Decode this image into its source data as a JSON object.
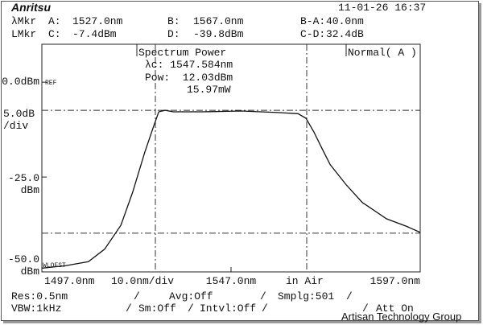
{
  "header": {
    "logo": "Anritsu",
    "datetime": "11-01-26 16:37",
    "markers": [
      [
        "λMkr",
        "A:",
        "1527.0nm",
        "B:",
        "1567.0nm",
        "B-A:",
        "40.0nm"
      ],
      [
        "LMkr",
        "C:",
        "-7.4dBm",
        "D:",
        "-39.8dBm",
        "C-D:",
        "32.4dB"
      ]
    ]
  },
  "chart_data": {
    "type": "line",
    "xlim": [
      1497,
      1597
    ],
    "ylim": [
      -50,
      10
    ],
    "xticks": [
      {
        "value": 1497,
        "label": "1497.0nm"
      },
      {
        "value": 1547,
        "label": "1547.0nm"
      },
      {
        "value": 1597,
        "label": "1597.0nm"
      }
    ],
    "yticks": [
      {
        "value": 0,
        "label": "0.0dBm"
      },
      {
        "value": -25,
        "label": "-25.0\n  dBm"
      },
      {
        "value": -50,
        "label": "-50.0\n  dBm"
      }
    ],
    "ref_label": "REF",
    "scale_label": "5.0dB\n/div",
    "span_label": "10.0nm/div",
    "medium_label": "in Air",
    "offset_label": "WLOFST",
    "mode_label": "Normal( A )",
    "analysis": [
      "Spectrum Power",
      "λc: 1547.584nm",
      "Pow:  12.03dBm",
      "15.97mW"
    ],
    "marker_lines": {
      "x": [
        1527,
        1567
      ],
      "y": [
        -7.4,
        -39.8
      ]
    },
    "color": "#111111",
    "x": [
      1497,
      1503,
      1509.3,
      1513.6,
      1517.9,
      1521,
      1524.2,
      1526.4,
      1527.9,
      1529.6,
      1531.7,
      1539.1,
      1549.8,
      1559.3,
      1564.7,
      1566.8,
      1568.9,
      1571,
      1573.2,
      1577.4,
      1581.7,
      1588.1,
      1593.4,
      1597
    ],
    "values": [
      -49,
      -48.4,
      -47.3,
      -44,
      -37.7,
      -29,
      -18.5,
      -12,
      -7.8,
      -7.4,
      -7.8,
      -7.8,
      -7.6,
      -8,
      -8.3,
      -9.5,
      -13.1,
      -17.4,
      -21.7,
      -27,
      -31.7,
      -36,
      -38,
      -39.6
    ]
  },
  "footer": [
    [
      "Res:0.5nm",
      "Avg:Off",
      "Smplg:501"
    ],
    [
      "VBW:1kHz",
      "Sm:Off",
      "Intvl:Off",
      "Att On"
    ]
  ],
  "watermark": "Artisan Technology Group"
}
